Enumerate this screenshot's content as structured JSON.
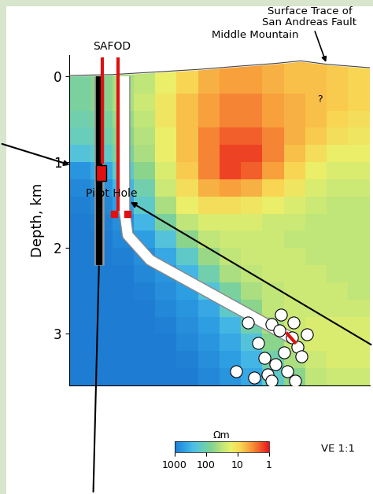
{
  "chart_data": {
    "type": "heatmap",
    "y_label": "Depth, km",
    "xlim": [
      0,
      3.5
    ],
    "ylim": [
      3.6,
      -0.25
    ],
    "yticks": [
      0,
      1,
      2,
      3
    ],
    "tick_labels": "y",
    "x_edges": [
      0,
      0.25,
      0.5,
      0.75,
      1.0,
      1.25,
      1.5,
      1.75,
      2.0,
      2.25,
      2.5,
      2.75,
      3.0,
      3.25,
      3.5
    ],
    "depth_edges": [
      -0.2,
      0.2,
      0.4,
      0.6,
      0.8,
      1.0,
      1.2,
      1.4,
      1.6,
      1.8,
      2.0,
      2.2,
      2.4,
      2.6,
      2.8,
      3.0,
      3.2,
      3.4,
      3.6
    ],
    "cells": [
      [
        80,
        60,
        40,
        30,
        15,
        8,
        5,
        4,
        4,
        5,
        6,
        6,
        7,
        8
      ],
      [
        80,
        60,
        40,
        25,
        12,
        6,
        4,
        3,
        3,
        4,
        5,
        6,
        7,
        8
      ],
      [
        100,
        80,
        50,
        30,
        12,
        6,
        4,
        3,
        3,
        4,
        5,
        6,
        8,
        10
      ],
      [
        120,
        100,
        60,
        35,
        15,
        6,
        3,
        2,
        2,
        3,
        5,
        7,
        10,
        12
      ],
      [
        200,
        150,
        80,
        40,
        15,
        6,
        3,
        1.5,
        1.5,
        3,
        6,
        10,
        15,
        15
      ],
      [
        600,
        400,
        150,
        60,
        20,
        7,
        3,
        1.5,
        2,
        4,
        8,
        15,
        20,
        20
      ],
      [
        800,
        600,
        300,
        100,
        25,
        10,
        5,
        4,
        5,
        8,
        12,
        20,
        25,
        25
      ],
      [
        900,
        800,
        500,
        150,
        40,
        15,
        10,
        10,
        12,
        15,
        20,
        25,
        30,
        30
      ],
      [
        1000,
        900,
        700,
        300,
        80,
        30,
        20,
        20,
        20,
        25,
        25,
        30,
        30,
        30
      ],
      [
        1000,
        1000,
        800,
        500,
        200,
        60,
        30,
        25,
        25,
        25,
        30,
        30,
        30,
        30
      ],
      [
        1000,
        1000,
        900,
        700,
        400,
        150,
        50,
        30,
        25,
        25,
        25,
        30,
        30,
        30
      ],
      [
        1000,
        1000,
        1000,
        800,
        600,
        300,
        100,
        40,
        30,
        25,
        25,
        25,
        30,
        30
      ],
      [
        1000,
        1000,
        1000,
        900,
        700,
        500,
        200,
        80,
        40,
        30,
        25,
        25,
        25,
        30
      ],
      [
        1000,
        1000,
        1000,
        1000,
        800,
        600,
        400,
        150,
        60,
        30,
        25,
        25,
        25,
        25
      ],
      [
        1000,
        1000,
        1000,
        1000,
        900,
        700,
        500,
        300,
        100,
        40,
        25,
        20,
        20,
        20
      ],
      [
        1000,
        1000,
        1000,
        1000,
        1000,
        800,
        600,
        400,
        200,
        60,
        30,
        20,
        20,
        20
      ],
      [
        1000,
        1000,
        1000,
        1000,
        1000,
        900,
        700,
        500,
        300,
        100,
        40,
        25,
        20,
        20
      ],
      [
        1000,
        1000,
        1000,
        1000,
        1000,
        1000,
        800,
        600,
        400,
        150,
        60,
        30,
        25,
        25
      ]
    ],
    "colorbar": {
      "label": "Ωm",
      "range": [
        1,
        1000
      ],
      "ticks": [
        1000,
        100,
        10,
        1
      ],
      "log": true
    },
    "topography": {
      "label": "Middle Mountain",
      "x": [
        0,
        0.5,
        1.0,
        1.5,
        2.0,
        2.4,
        2.7,
        3.0,
        3.5
      ],
      "depth": [
        -0.01,
        -0.02,
        -0.05,
        -0.08,
        -0.12,
        -0.15,
        -0.18,
        -0.14,
        -0.1
      ]
    },
    "fault_trace": {
      "label": "Surface Trace of\nSan Andreas Fault",
      "query": "?"
    },
    "boreholes": [
      {
        "name": "Pilot Hole",
        "x": [
          0.35,
          0.35
        ],
        "depth": [
          0,
          2.2
        ]
      },
      {
        "name": "SAFOD",
        "x": [
          0.64,
          0.64,
          0.68,
          0.94,
          2.59
        ],
        "depth": [
          0,
          1.55,
          1.85,
          2.14,
          3.05
        ]
      }
    ],
    "red_lines": [
      {
        "x": [
          0.385,
          0.385
        ],
        "depth": [
          -0.2,
          1.0
        ]
      },
      {
        "x": [
          0.57,
          0.57
        ],
        "depth": [
          -0.2,
          1.55
        ]
      },
      {
        "x": [
          2.54,
          2.63
        ],
        "depth": [
          3.0,
          3.1
        ]
      }
    ],
    "red_boxes": [
      {
        "x": [
          0.31,
          0.43
        ],
        "depth": [
          1.04,
          1.22
        ]
      }
    ],
    "red_markers": {
      "x": [
        0.52,
        0.68
      ],
      "depth": [
        1.6,
        1.6
      ]
    },
    "earthquakes": {
      "x": [
        2.08,
        2.36,
        2.45,
        2.59,
        2.66,
        2.7,
        2.2,
        2.5,
        2.4,
        2.54,
        2.31,
        2.15,
        2.36,
        2.63,
        2.61,
        2.47,
        2.77,
        1.94,
        2.27
      ],
      "depth": [
        2.87,
        2.89,
        2.96,
        3.04,
        3.15,
        3.26,
        3.11,
        3.22,
        3.35,
        3.44,
        3.47,
        3.51,
        3.55,
        3.55,
        2.87,
        2.78,
        3.01,
        3.44,
        3.28
      ]
    },
    "scale_note": "VE 1:1"
  }
}
